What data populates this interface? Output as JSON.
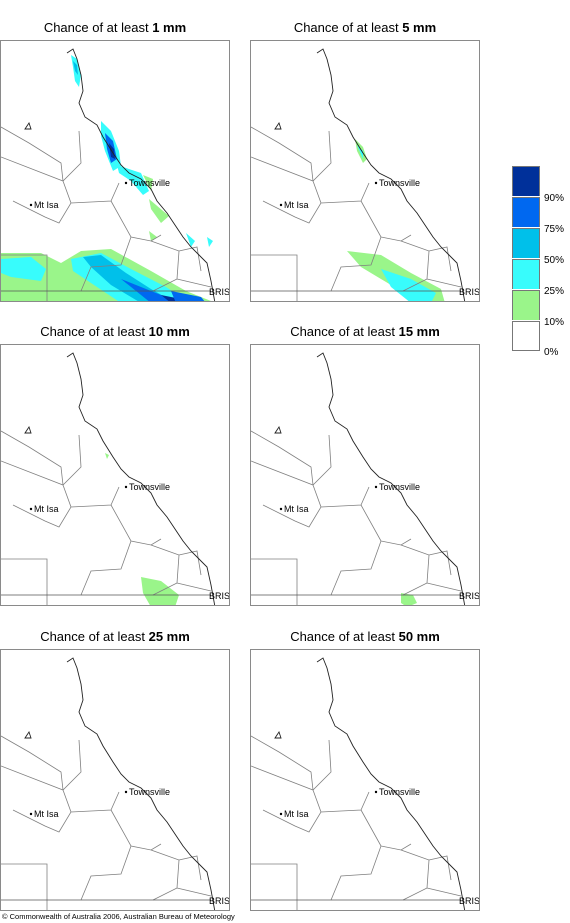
{
  "panels": [
    {
      "title_prefix": "Chance of at least ",
      "amount": "1 mm"
    },
    {
      "title_prefix": "Chance of at least ",
      "amount": "5 mm"
    },
    {
      "title_prefix": "Chance of at least ",
      "amount": "10 mm"
    },
    {
      "title_prefix": "Chance of at least ",
      "amount": "15 mm"
    },
    {
      "title_prefix": "Chance of at least ",
      "amount": "25 mm"
    },
    {
      "title_prefix": "Chance of at least ",
      "amount": "50 mm"
    }
  ],
  "places": {
    "townsville": "Townsville",
    "mt_isa": "Mt Isa",
    "brisbane": "BRIS"
  },
  "legend": {
    "labels": [
      "90%",
      "75%",
      "50%",
      "25%",
      "10%",
      "0%"
    ],
    "colors": [
      "#00309a",
      "#0068f0",
      "#00c0ea",
      "#38fcfc",
      "#9af58a",
      "#ffffff"
    ]
  },
  "footer": "© Commonwealth of Australia 2006, Australian Bureau of Meteorology"
}
